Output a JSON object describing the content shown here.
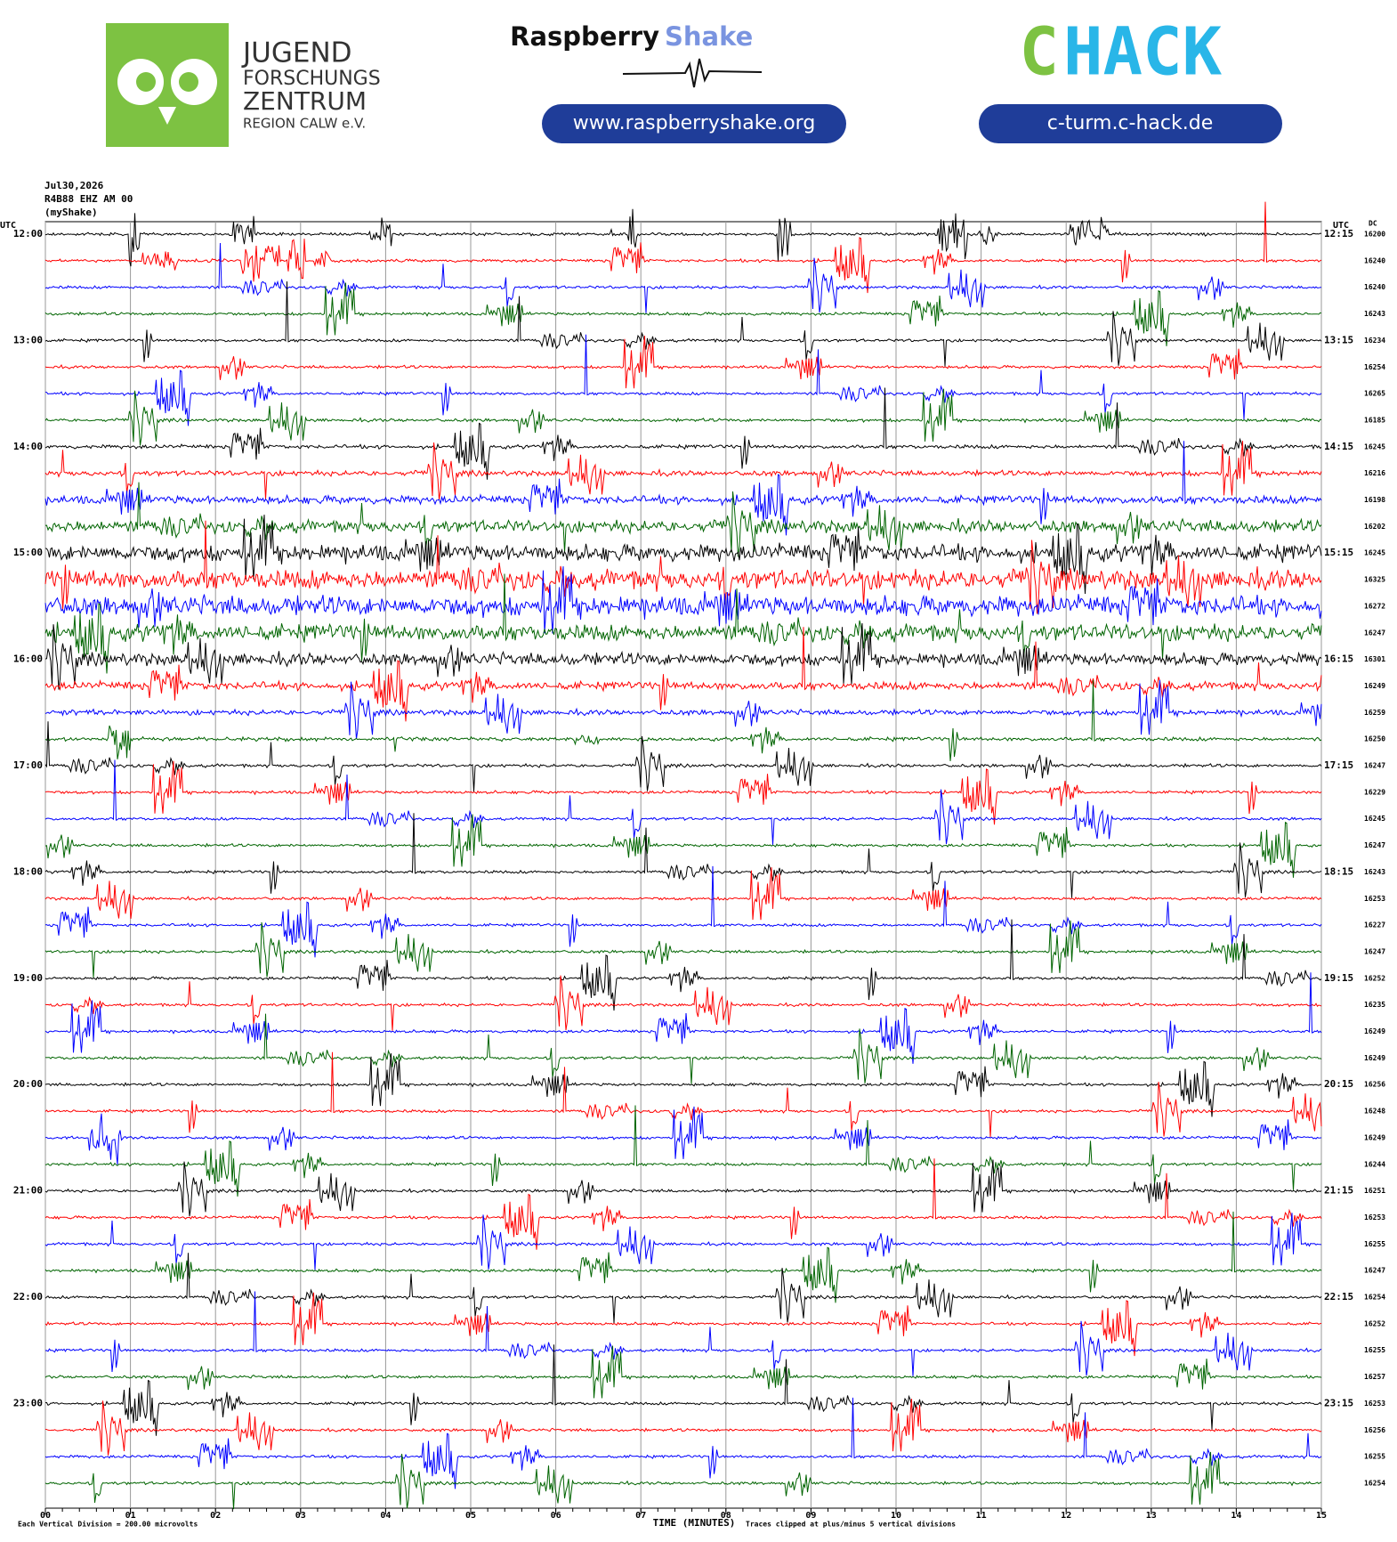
{
  "header": {
    "jfz": [
      "JUGEND",
      "FORSCHUNGS",
      "ZENTRUM",
      "REGION CALW e.V."
    ],
    "rs_name": "Raspberry",
    "rs_shake": "Shake",
    "rs_url": "www.raspberryshake.org",
    "chack_c": "C",
    "chack_hack": "HACK",
    "chack_url": "c-turm.c-hack.de"
  },
  "chart_data": {
    "type": "helicorder",
    "date": "Jul30,2026",
    "station": "R4B88 EHZ AM 00",
    "source": "(myShake)",
    "left_unit": "UTC",
    "right_unit": "UTC",
    "dc_label": "DC",
    "categories": [
      "12:00",
      null,
      null,
      null,
      "13:00",
      null,
      null,
      null,
      "14:00",
      null,
      null,
      null,
      "15:00",
      null,
      null,
      null,
      "16:00",
      null,
      null,
      null,
      "17:00",
      null,
      null,
      null,
      "18:00",
      null,
      null,
      null,
      "19:00",
      null,
      null,
      null,
      "20:00",
      null,
      null,
      null,
      "21:00",
      null,
      null,
      null,
      "22:00",
      null,
      null,
      null,
      "23:00",
      null,
      null,
      null
    ],
    "right_labels": [
      "12:15",
      null,
      null,
      null,
      "13:15",
      null,
      null,
      null,
      "14:15",
      null,
      null,
      null,
      "15:15",
      null,
      null,
      null,
      "16:15",
      null,
      null,
      null,
      "17:15",
      null,
      null,
      null,
      "18:15",
      null,
      null,
      null,
      "19:15",
      null,
      null,
      null,
      "20:15",
      null,
      null,
      null,
      "21:15",
      null,
      null,
      null,
      "22:15",
      null,
      null,
      null,
      "23:15",
      null,
      null,
      null
    ],
    "dc_values": [
      16200,
      16240,
      16240,
      16243,
      16234,
      16254,
      16265,
      16185,
      16245,
      16216,
      16198,
      16202,
      16245,
      16325,
      16272,
      16247,
      16301,
      16249,
      16259,
      16250,
      16247,
      16229,
      16245,
      16247,
      16243,
      16253,
      16227,
      16247,
      16252,
      16235,
      16249,
      16249,
      16256,
      16248,
      16249,
      16244,
      16251,
      16253,
      16255,
      16247,
      16254,
      16252,
      16255,
      16257,
      16253,
      16256,
      16255,
      16254
    ],
    "colors": [
      "#000000",
      "#ff0000",
      "#0000ff",
      "#006400"
    ],
    "xlim": [
      0,
      15
    ],
    "xticks": [
      {
        "value": 0,
        "label": "00"
      },
      {
        "value": 1,
        "label": "01"
      },
      {
        "value": 2,
        "label": "02"
      },
      {
        "value": 3,
        "label": "03"
      },
      {
        "value": 4,
        "label": "04"
      },
      {
        "value": 5,
        "label": "05"
      },
      {
        "value": 6,
        "label": "06"
      },
      {
        "value": 7,
        "label": "07"
      },
      {
        "value": 8,
        "label": "08"
      },
      {
        "value": 9,
        "label": "09"
      },
      {
        "value": 10,
        "label": "10"
      },
      {
        "value": 11,
        "label": "11"
      },
      {
        "value": 12,
        "label": "12"
      },
      {
        "value": 13,
        "label": "13"
      },
      {
        "value": 14,
        "label": "14"
      },
      {
        "value": 15,
        "label": "15"
      }
    ],
    "x_label": "TIME (MINUTES)",
    "scale_note": "Each Vertical Division =  200.00 microvolts",
    "clip_note": "Traces clipped at plus/minus 5 vertical divisions"
  }
}
